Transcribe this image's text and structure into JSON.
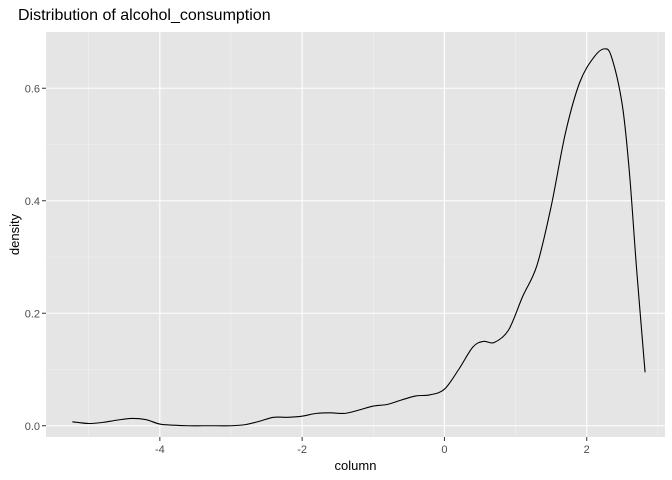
{
  "chart_data": {
    "type": "line",
    "title": "Distribution of alcohol_consumption",
    "xlabel": "column",
    "ylabel": "density",
    "xlim": [
      -5.6,
      3.1
    ],
    "ylim": [
      -0.02,
      0.7
    ],
    "x_ticks": [
      -4,
      -2,
      0,
      2
    ],
    "x_tick_labels": [
      "-4",
      "-2",
      "0",
      "2"
    ],
    "y_ticks": [
      0.0,
      0.2,
      0.4,
      0.6
    ],
    "y_tick_labels": [
      "0.0",
      "0.2",
      "0.4",
      "0.6"
    ],
    "x_minor_ticks": [
      -5,
      -3,
      -1,
      1,
      3
    ],
    "y_minor_ticks": [
      0.1,
      0.3,
      0.5
    ],
    "grid": true,
    "colors": {
      "panel": "#e5e5e5",
      "line": "#000000",
      "grid": "#ffffff"
    },
    "series": [
      {
        "x": [
          -5.23,
          -5.0,
          -4.8,
          -4.6,
          -4.4,
          -4.2,
          -4.0,
          -3.8,
          -3.6,
          -3.4,
          -3.2,
          -3.0,
          -2.8,
          -2.6,
          -2.4,
          -2.2,
          -2.0,
          -1.8,
          -1.6,
          -1.4,
          -1.2,
          -1.0,
          -0.8,
          -0.6,
          -0.4,
          -0.2,
          0.0,
          0.2,
          0.4,
          0.55,
          0.7,
          0.9,
          1.1,
          1.3,
          1.5,
          1.7,
          1.9,
          2.1,
          2.25,
          2.35,
          2.5,
          2.6,
          2.7,
          2.82
        ],
        "y": [
          0.007,
          0.004,
          0.006,
          0.01,
          0.013,
          0.011,
          0.003,
          0.001,
          0.0,
          0.0,
          0.0,
          0.0,
          0.002,
          0.008,
          0.015,
          0.015,
          0.017,
          0.022,
          0.023,
          0.022,
          0.028,
          0.035,
          0.038,
          0.046,
          0.053,
          0.055,
          0.065,
          0.1,
          0.14,
          0.15,
          0.148,
          0.17,
          0.23,
          0.285,
          0.39,
          0.52,
          0.61,
          0.655,
          0.67,
          0.655,
          0.57,
          0.45,
          0.28,
          0.095
        ]
      }
    ]
  }
}
